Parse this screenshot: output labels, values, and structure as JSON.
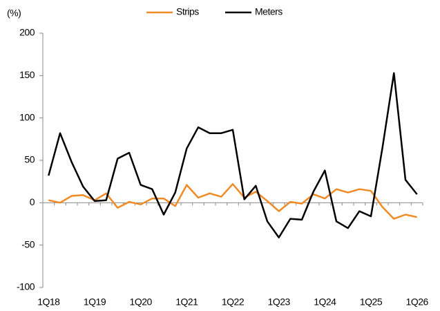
{
  "chart_data": {
    "type": "line",
    "y_label": "(%)",
    "categories": [
      "1Q18",
      null,
      null,
      null,
      "1Q19",
      null,
      null,
      null,
      "1Q20",
      null,
      null,
      null,
      "1Q21",
      null,
      null,
      null,
      "1Q22",
      null,
      null,
      null,
      "1Q23",
      null,
      null,
      null,
      "1Q24",
      null,
      null,
      null,
      "1Q25",
      null,
      null,
      null,
      "1Q26"
    ],
    "series": [
      {
        "name": "Strips",
        "color": "#f08a24",
        "values": [
          3,
          0,
          8,
          9,
          3,
          11,
          -6,
          1,
          -2,
          5,
          5,
          -4,
          21,
          6,
          11,
          7,
          22,
          6,
          13,
          2,
          -10,
          1,
          -1,
          10,
          5,
          16,
          12,
          16,
          14,
          -5,
          -19,
          -14,
          -17
        ]
      },
      {
        "name": "Meters",
        "color": "#000000",
        "values": [
          32,
          82,
          48,
          19,
          2,
          3,
          52,
          59,
          21,
          16,
          -14,
          12,
          64,
          89,
          82,
          82,
          86,
          4,
          20,
          -22,
          -41,
          -19,
          -20,
          13,
          38,
          -22,
          -30,
          -10,
          -16,
          65,
          153,
          27,
          10
        ]
      }
    ],
    "ylim": [
      -100,
      200
    ],
    "yticks": [
      -100,
      -50,
      0,
      50,
      100,
      150,
      200
    ],
    "legend": "top",
    "grid": false
  }
}
